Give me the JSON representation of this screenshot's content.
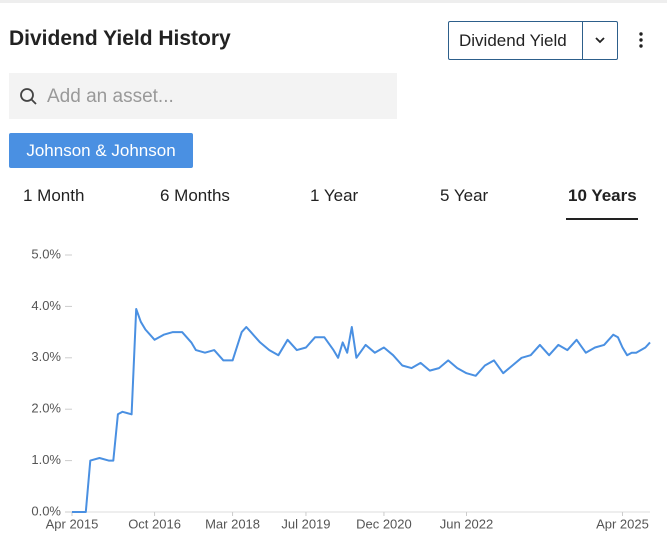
{
  "header": {
    "title": "Dividend Yield History"
  },
  "select": {
    "label": "Dividend Yield"
  },
  "search": {
    "placeholder": "Add an asset..."
  },
  "tag": {
    "label": "Johnson & Johnson"
  },
  "tabs": [
    "1 Month",
    "6 Months",
    "1 Year",
    "5 Year",
    "10 Years"
  ],
  "chart_data": {
    "type": "line",
    "color": "#4a90e2",
    "x": [
      "2015-04",
      "2015-07",
      "2015-08",
      "2015-10",
      "2015-12",
      "2016-01",
      "2016-02",
      "2016-03",
      "2016-05",
      "2016-06",
      "2016-07",
      "2016-08",
      "2016-10",
      "2016-12",
      "2017-02",
      "2017-04",
      "2017-06",
      "2017-07",
      "2017-09",
      "2017-11",
      "2018-01",
      "2018-03",
      "2018-05",
      "2018-06",
      "2018-07",
      "2018-09",
      "2018-11",
      "2019-01",
      "2019-03",
      "2019-05",
      "2019-07",
      "2019-09",
      "2019-11",
      "2020-01",
      "2020-02",
      "2020-03",
      "2020-04",
      "2020-05",
      "2020-06",
      "2020-08",
      "2020-10",
      "2020-12",
      "2021-02",
      "2021-04",
      "2021-06",
      "2021-08",
      "2021-10",
      "2021-12",
      "2022-02",
      "2022-04",
      "2022-06",
      "2022-08",
      "2022-10",
      "2022-12",
      "2023-02",
      "2023-04",
      "2023-06",
      "2023-08",
      "2023-10",
      "2023-12",
      "2024-02",
      "2024-04",
      "2024-06",
      "2024-08",
      "2024-10",
      "2024-12",
      "2025-02",
      "2025-03",
      "2025-04",
      "2025-05",
      "2025-06",
      "2025-07",
      "2025-09",
      "2025-10"
    ],
    "values": [
      0,
      0,
      1.0,
      1.05,
      1.0,
      1.0,
      1.9,
      1.95,
      1.9,
      3.95,
      3.7,
      3.55,
      3.35,
      3.45,
      3.5,
      3.5,
      3.3,
      3.15,
      3.1,
      3.15,
      2.95,
      2.95,
      3.5,
      3.6,
      3.5,
      3.3,
      3.15,
      3.05,
      3.35,
      3.15,
      3.2,
      3.4,
      3.4,
      3.15,
      3.0,
      3.3,
      3.1,
      3.6,
      3.0,
      3.25,
      3.1,
      3.2,
      3.05,
      2.85,
      2.8,
      2.9,
      2.75,
      2.8,
      2.95,
      2.8,
      2.7,
      2.65,
      2.85,
      2.95,
      2.7,
      2.85,
      3.0,
      3.05,
      3.25,
      3.05,
      3.25,
      3.15,
      3.35,
      3.1,
      3.2,
      3.25,
      3.45,
      3.4,
      3.2,
      3.05,
      3.1,
      3.1,
      3.2,
      3.3
    ],
    "xlim": [
      "2015-04",
      "2025-10"
    ],
    "xticks": [
      {
        "value": "2015-04",
        "label": "Apr 2015"
      },
      {
        "value": "2016-10",
        "label": "Oct 2016"
      },
      {
        "value": "2018-03",
        "label": "Mar 2018"
      },
      {
        "value": "2019-07",
        "label": "Jul 2019"
      },
      {
        "value": "2020-12",
        "label": "Dec 2020"
      },
      {
        "value": "2022-06",
        "label": "Jun 2022"
      },
      {
        "value": "2025-04",
        "label": "Apr 2025"
      }
    ],
    "ylim": [
      0,
      5
    ],
    "yticks": [
      {
        "value": 0,
        "label": "0.0%"
      },
      {
        "value": 1,
        "label": "1.0%"
      },
      {
        "value": 2,
        "label": "2.0%"
      },
      {
        "value": 3,
        "label": "3.0%"
      },
      {
        "value": 4,
        "label": "4.0%"
      },
      {
        "value": 5,
        "label": "5.0%"
      }
    ]
  }
}
